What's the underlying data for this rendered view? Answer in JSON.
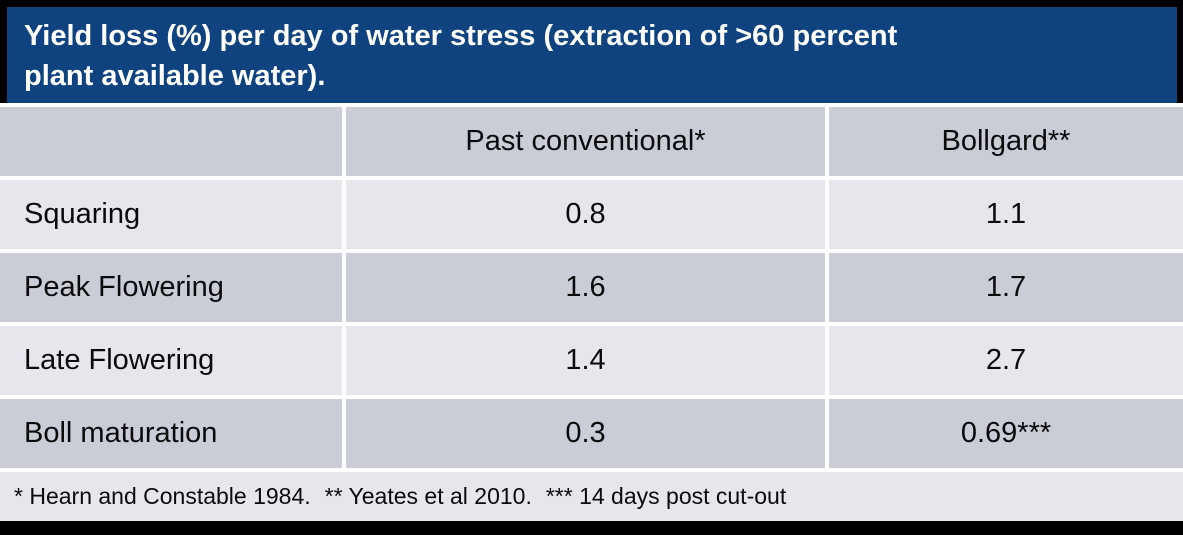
{
  "header": {
    "title_lines": [
      "Yield loss (%) per day of water stress (extraction of >60 percent",
      "plant available water)."
    ]
  },
  "chart_data": {
    "type": "table",
    "title": "Yield loss (%) per day of water stress (extraction of >60 percent plant available water).",
    "columns": [
      "",
      "Past conventional*",
      "Bollgard**"
    ],
    "rows": [
      [
        "Squaring",
        "0.8",
        "1.1"
      ],
      [
        "Peak Flowering",
        "1.6",
        "1.7"
      ],
      [
        "Late Flowering",
        "1.4",
        "2.7"
      ],
      [
        "Boll maturation",
        "0.3",
        "0.69***"
      ]
    ],
    "footnotes": [
      "* Hearn and Constable 1984.",
      "** Yeates et al 2010.",
      "*** 14 days post cut-out"
    ]
  },
  "colors": {
    "title_bar_background": "#0E437F",
    "title_text": "#FFFFFF",
    "row_band_dark": "#CACCD6",
    "row_band_light": "#E5E7EC",
    "divider": "#FFFFFF",
    "page_background": "#000000",
    "body_text": "#0A0A0A"
  }
}
